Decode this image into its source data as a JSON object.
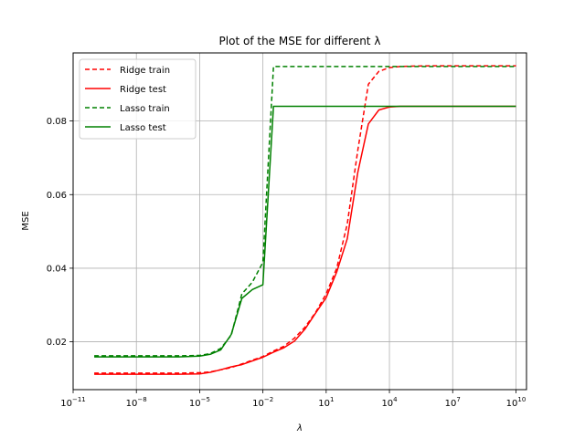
{
  "chart_data": {
    "type": "line",
    "title": "Plot of the MSE for different λ",
    "xlabel": "λ",
    "ylabel": "MSE",
    "xscale": "log",
    "xlim_exp": [
      -11,
      10.5
    ],
    "ylim": [
      0.007,
      0.0985
    ],
    "grid": true,
    "legend_position": "top-left",
    "x_ticks": [
      {
        "base": "10",
        "exp": "−11",
        "value_exp": -11
      },
      {
        "base": "10",
        "exp": "−8",
        "value_exp": -8
      },
      {
        "base": "10",
        "exp": "−5",
        "value_exp": -5
      },
      {
        "base": "10",
        "exp": "−2",
        "value_exp": -2
      },
      {
        "base": "10",
        "exp": "1",
        "value_exp": 1
      },
      {
        "base": "10",
        "exp": "4",
        "value_exp": 4
      },
      {
        "base": "10",
        "exp": "7",
        "value_exp": 7
      },
      {
        "base": "10",
        "exp": "10",
        "value_exp": 10
      }
    ],
    "y_ticks": [
      {
        "label": "0.02",
        "value": 0.02
      },
      {
        "label": "0.04",
        "value": 0.04
      },
      {
        "label": "0.06",
        "value": 0.06
      },
      {
        "label": "0.08",
        "value": 0.08
      }
    ],
    "series": [
      {
        "name": "Ridge train",
        "color": "#ff0000",
        "style": "dashed",
        "x_exp": [
          -10,
          -9,
          -8,
          -7,
          -6,
          -5,
          -4.5,
          -4,
          -3.5,
          -3,
          -2.5,
          -2,
          -1.5,
          -1,
          -0.5,
          0,
          0.5,
          1,
          1.5,
          2,
          2.5,
          3,
          3.5,
          4,
          4.5,
          5,
          6,
          7,
          8,
          9,
          10
        ],
        "y": [
          0.0115,
          0.0115,
          0.0115,
          0.0115,
          0.0115,
          0.0116,
          0.0118,
          0.0124,
          0.013,
          0.014,
          0.015,
          0.016,
          0.0175,
          0.0188,
          0.021,
          0.024,
          0.028,
          0.033,
          0.04,
          0.052,
          0.072,
          0.09,
          0.0935,
          0.0945,
          0.0948,
          0.0949,
          0.095,
          0.095,
          0.095,
          0.095,
          0.095
        ]
      },
      {
        "name": "Ridge test",
        "color": "#ff0000",
        "style": "solid",
        "x_exp": [
          -10,
          -9,
          -8,
          -7,
          -6,
          -5,
          -4.5,
          -4,
          -3.5,
          -3,
          -2.5,
          -2,
          -1.5,
          -1,
          -0.5,
          0,
          0.5,
          1,
          1.5,
          2,
          2.5,
          3,
          3.5,
          4,
          4.5,
          5,
          6,
          7,
          8,
          9,
          10
        ],
        "y": [
          0.0112,
          0.0112,
          0.0112,
          0.0112,
          0.0112,
          0.0113,
          0.0117,
          0.0124,
          0.0132,
          0.0138,
          0.0148,
          0.0158,
          0.0172,
          0.0184,
          0.0202,
          0.0235,
          0.0278,
          0.032,
          0.039,
          0.048,
          0.066,
          0.0792,
          0.083,
          0.0838,
          0.084,
          0.084,
          0.084,
          0.084,
          0.084,
          0.084,
          0.084
        ]
      },
      {
        "name": "Lasso train",
        "color": "#008000",
        "style": "dashed",
        "x_exp": [
          -10,
          -9,
          -8,
          -7,
          -6,
          -5,
          -4.5,
          -4,
          -3.5,
          -3,
          -2.5,
          -2,
          -1.5,
          -1,
          0,
          1,
          2,
          3,
          4,
          5,
          6,
          7,
          8,
          9,
          10
        ],
        "y": [
          0.0162,
          0.0162,
          0.0162,
          0.0162,
          0.0162,
          0.0163,
          0.0168,
          0.0182,
          0.0218,
          0.033,
          0.0362,
          0.0416,
          0.0948,
          0.0948,
          0.0948,
          0.0948,
          0.0948,
          0.0948,
          0.0948,
          0.0948,
          0.0948,
          0.0948,
          0.0948,
          0.0948,
          0.0948
        ]
      },
      {
        "name": "Lasso test",
        "color": "#008000",
        "style": "solid",
        "x_exp": [
          -10,
          -9,
          -8,
          -7,
          -6,
          -5,
          -4.5,
          -4,
          -3.5,
          -3,
          -2.5,
          -2,
          -1.5,
          -1,
          0,
          1,
          2,
          3,
          4,
          5,
          6,
          7,
          8,
          9,
          10
        ],
        "y": [
          0.0159,
          0.0159,
          0.0159,
          0.0159,
          0.0159,
          0.0161,
          0.0166,
          0.0178,
          0.022,
          0.0318,
          0.0342,
          0.0355,
          0.084,
          0.084,
          0.084,
          0.084,
          0.084,
          0.084,
          0.084,
          0.084,
          0.084,
          0.084,
          0.084,
          0.084,
          0.084
        ]
      }
    ]
  }
}
